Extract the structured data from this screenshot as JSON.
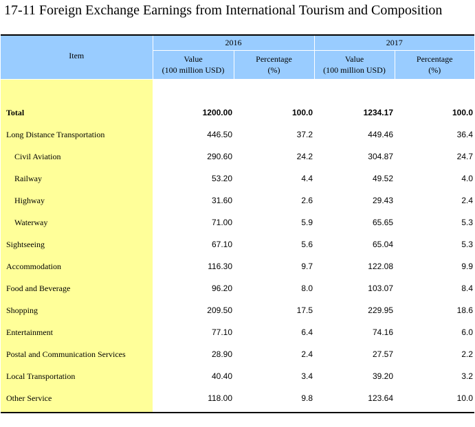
{
  "title": "17-11  Foreign Exchange Earnings from International Tourism and Composition",
  "header": {
    "item": "Item",
    "years": [
      "2016",
      "2017"
    ],
    "value_label": "Value",
    "value_unit": "(100 million USD)",
    "pct_label": "Percentage",
    "pct_unit": "(%)"
  },
  "rows": [
    {
      "label": "Total",
      "v2016": "1200.00",
      "p2016": "100.0",
      "v2017": "1234.17",
      "p2017": "100.0"
    },
    {
      "label": "Long Distance Transportation",
      "v2016": "446.50",
      "p2016": "37.2",
      "v2017": "449.46",
      "p2017": "36.4"
    },
    {
      "label": "Civil Aviation",
      "v2016": "290.60",
      "p2016": "24.2",
      "v2017": "304.87",
      "p2017": "24.7"
    },
    {
      "label": "Railway",
      "v2016": "53.20",
      "p2016": "4.4",
      "v2017": "49.52",
      "p2017": "4.0"
    },
    {
      "label": "Highway",
      "v2016": "31.60",
      "p2016": "2.6",
      "v2017": "29.43",
      "p2017": "2.4"
    },
    {
      "label": "Waterway",
      "v2016": "71.00",
      "p2016": "5.9",
      "v2017": "65.65",
      "p2017": "5.3"
    },
    {
      "label": "Sightseeing",
      "v2016": "67.10",
      "p2016": "5.6",
      "v2017": "65.04",
      "p2017": "5.3"
    },
    {
      "label": "Accommodation",
      "v2016": "116.30",
      "p2016": "9.7",
      "v2017": "122.08",
      "p2017": "9.9"
    },
    {
      "label": "Food and Beverage",
      "v2016": "96.20",
      "p2016": "8.0",
      "v2017": "103.07",
      "p2017": "8.4"
    },
    {
      "label": "Shopping",
      "v2016": "209.50",
      "p2016": "17.5",
      "v2017": "229.95",
      "p2017": "18.6"
    },
    {
      "label": "Entertainment",
      "v2016": "77.10",
      "p2016": "6.4",
      "v2017": "74.16",
      "p2017": "6.0"
    },
    {
      "label": "Postal and Communication Services",
      "v2016": "28.90",
      "p2016": "2.4",
      "v2017": "27.57",
      "p2017": "2.2"
    },
    {
      "label": "Local Transportation",
      "v2016": "40.40",
      "p2016": "3.4",
      "v2017": "39.20",
      "p2017": "3.2"
    },
    {
      "label": "Other Service",
      "v2016": "118.00",
      "p2016": "9.8",
      "v2017": "123.64",
      "p2017": "10.0"
    }
  ]
}
